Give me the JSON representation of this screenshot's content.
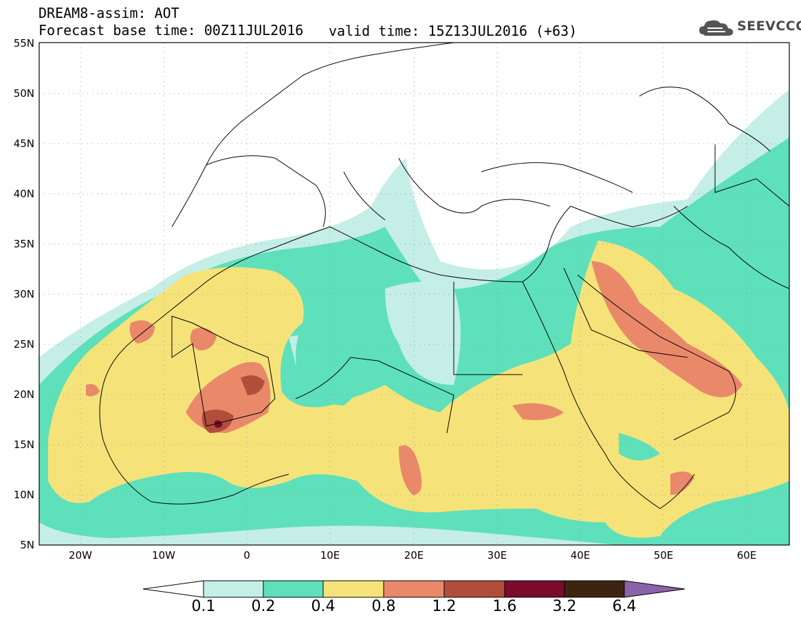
{
  "header": {
    "line1": "DREAM8-assim: AOT",
    "line2": "Forecast base time: 00Z11JUL2016",
    "valid": "valid time: 15Z13JUL2016 (+63)"
  },
  "logo": {
    "text": "SEEVCCC",
    "icon": "cloud-logo-icon"
  },
  "map": {
    "variable": "AOT",
    "lat_labels": [
      "55N",
      "50N",
      "45N",
      "40N",
      "35N",
      "30N",
      "25N",
      "20N",
      "15N",
      "10N",
      "5N"
    ],
    "lon_labels": [
      "20W",
      "10W",
      "0",
      "10E",
      "20E",
      "30E",
      "40E",
      "50E",
      "60E"
    ],
    "lat_range": [
      5,
      55
    ],
    "lon_range": [
      -25,
      65
    ]
  },
  "colorbar": {
    "levels": [
      "0.1",
      "0.2",
      "0.4",
      "0.8",
      "1.2",
      "1.6",
      "3.2",
      "6.4"
    ],
    "colors": [
      "#c4eee6",
      "#5ee0bb",
      "#f5e37a",
      "#e9896a",
      "#b14e3b",
      "#7a0b2a",
      "#3d2412",
      "#8a63a8"
    ]
  }
}
